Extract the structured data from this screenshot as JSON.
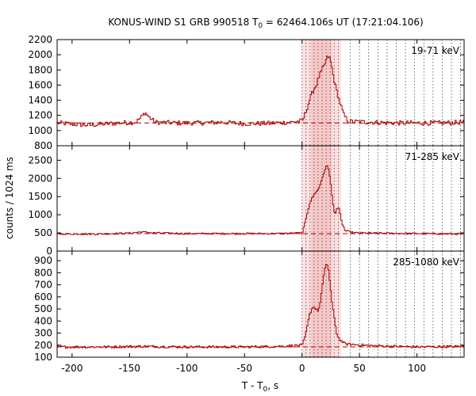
{
  "chart_data": {
    "type": "line",
    "title_prefix": "KONUS-WIND S1 GRB 990518 T",
    "title_sub": "0",
    "title_suffix": " = 62464.106s UT (17:21:04.106)",
    "xlabel_prefix": "T - T",
    "xlabel_sub": "0",
    "xlabel_suffix": ", s",
    "ylabel": "counts / 1024 ms",
    "xlim": [
      -213,
      141
    ],
    "xticks": [
      -200,
      -150,
      -100,
      -50,
      0,
      50,
      100
    ],
    "xtick_labels": [
      "-200",
      "-150",
      "-100",
      "-50",
      "0",
      "50",
      "100"
    ],
    "shaded_interval": [
      0,
      34
    ],
    "highlight_interval": [
      8,
      26
    ],
    "line_color": "#aa0000",
    "shade_color": "#fde0e0",
    "highlight_color": "#f8c8c8",
    "panels": [
      {
        "name": "panel-19-71",
        "band_label": "19-71 keV",
        "ylim": [
          800,
          2200
        ],
        "yticks": [
          800,
          1000,
          1200,
          1400,
          1600,
          1800,
          2000,
          2200
        ],
        "ytick_labels": [
          "800",
          "1000",
          "1200",
          "1400",
          "1600",
          "1800",
          "2000",
          "2200"
        ],
        "background": 1100,
        "profile": [
          [
            -213,
            1100
          ],
          [
            -195,
            1080
          ],
          [
            -185,
            1070
          ],
          [
            -175,
            1085
          ],
          [
            -160,
            1100
          ],
          [
            -145,
            1110
          ],
          [
            -140,
            1180
          ],
          [
            -137,
            1240
          ],
          [
            -133,
            1170
          ],
          [
            -128,
            1110
          ],
          [
            -110,
            1100
          ],
          [
            -90,
            1100
          ],
          [
            -70,
            1110
          ],
          [
            -50,
            1090
          ],
          [
            -30,
            1095
          ],
          [
            -10,
            1110
          ],
          [
            0,
            1130
          ],
          [
            3,
            1250
          ],
          [
            6,
            1400
          ],
          [
            9,
            1520
          ],
          [
            12,
            1600
          ],
          [
            14,
            1700
          ],
          [
            17,
            1800
          ],
          [
            19,
            1860
          ],
          [
            21,
            1950
          ],
          [
            23,
            1980
          ],
          [
            25,
            1880
          ],
          [
            27,
            1700
          ],
          [
            29,
            1560
          ],
          [
            31,
            1450
          ],
          [
            33,
            1350
          ],
          [
            36,
            1200
          ],
          [
            40,
            1120
          ],
          [
            60,
            1110
          ],
          [
            80,
            1100
          ],
          [
            100,
            1100
          ],
          [
            120,
            1100
          ],
          [
            141,
            1110
          ]
        ],
        "noise_amplitude": 30
      },
      {
        "name": "panel-71-285",
        "band_label": "71-285 keV",
        "ylim": [
          0,
          2900
        ],
        "yticks": [
          0,
          500,
          1000,
          1500,
          2000,
          2500
        ],
        "ytick_labels": [
          "0",
          "500",
          "1000",
          "1500",
          "2000",
          "2500"
        ],
        "background": 480,
        "profile": [
          [
            -213,
            470
          ],
          [
            -180,
            470
          ],
          [
            -150,
            490
          ],
          [
            -140,
            530
          ],
          [
            -130,
            500
          ],
          [
            -100,
            480
          ],
          [
            -60,
            480
          ],
          [
            -20,
            480
          ],
          [
            0,
            500
          ],
          [
            3,
            900
          ],
          [
            6,
            1300
          ],
          [
            9,
            1500
          ],
          [
            12,
            1650
          ],
          [
            14,
            1700
          ],
          [
            16,
            1900
          ],
          [
            18,
            2100
          ],
          [
            20,
            2300
          ],
          [
            22,
            2350
          ],
          [
            24,
            2000
          ],
          [
            26,
            1400
          ],
          [
            28,
            1000
          ],
          [
            30,
            1200
          ],
          [
            32,
            1150
          ],
          [
            34,
            800
          ],
          [
            37,
            560
          ],
          [
            45,
            500
          ],
          [
            70,
            490
          ],
          [
            100,
            480
          ],
          [
            141,
            470
          ]
        ],
        "noise_amplitude": 22
      },
      {
        "name": "panel-285-1080",
        "band_label": "285-1080 keV",
        "ylim": [
          100,
          980
        ],
        "yticks": [
          100,
          200,
          300,
          400,
          500,
          600,
          700,
          800,
          900
        ],
        "ytick_labels": [
          "100",
          "200",
          "300",
          "400",
          "500",
          "600",
          "700",
          "800",
          "900"
        ],
        "background": 185,
        "profile": [
          [
            -213,
            185
          ],
          [
            -170,
            185
          ],
          [
            -140,
            190
          ],
          [
            -100,
            185
          ],
          [
            -50,
            185
          ],
          [
            -20,
            190
          ],
          [
            0,
            200
          ],
          [
            3,
            300
          ],
          [
            6,
            450
          ],
          [
            9,
            520
          ],
          [
            12,
            500
          ],
          [
            14,
            480
          ],
          [
            16,
            600
          ],
          [
            18,
            750
          ],
          [
            20,
            860
          ],
          [
            22,
            870
          ],
          [
            24,
            700
          ],
          [
            26,
            520
          ],
          [
            28,
            400
          ],
          [
            30,
            280
          ],
          [
            33,
            240
          ],
          [
            37,
            210
          ],
          [
            60,
            195
          ],
          [
            100,
            185
          ],
          [
            141,
            190
          ]
        ],
        "noise_amplitude": 10
      }
    ]
  }
}
